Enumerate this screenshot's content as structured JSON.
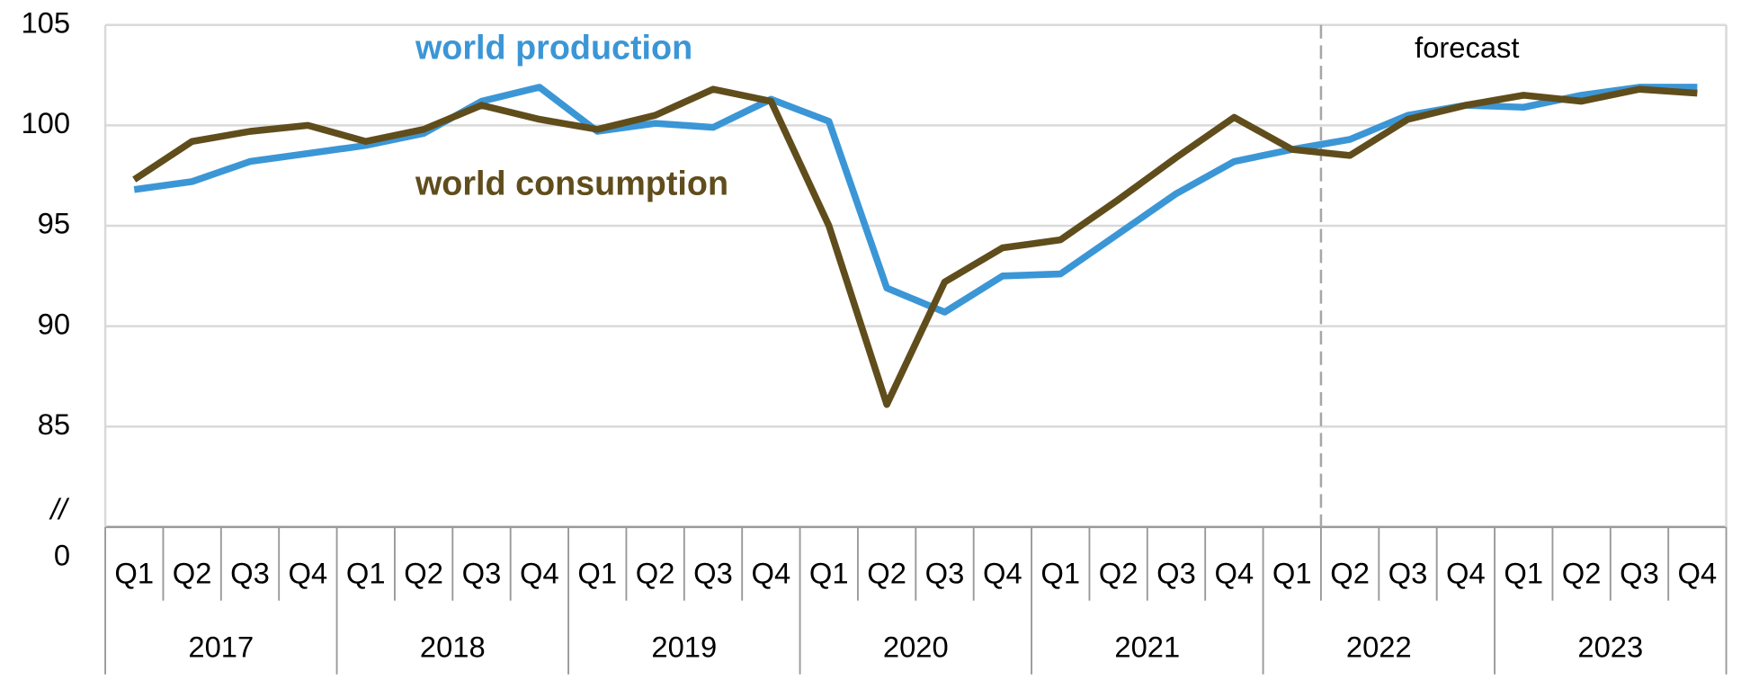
{
  "chart_data": {
    "type": "line",
    "categories": [
      "Q1",
      "Q2",
      "Q3",
      "Q4",
      "Q1",
      "Q2",
      "Q3",
      "Q4",
      "Q1",
      "Q2",
      "Q3",
      "Q4",
      "Q1",
      "Q2",
      "Q3",
      "Q4",
      "Q1",
      "Q2",
      "Q3",
      "Q4",
      "Q1",
      "Q2",
      "Q3",
      "Q4",
      "Q1",
      "Q2",
      "Q3",
      "Q4"
    ],
    "years": [
      "2017",
      "2018",
      "2019",
      "2020",
      "2021",
      "2022",
      "2023"
    ],
    "series": [
      {
        "name": "world production",
        "color": "#3b96d6",
        "values": [
          96.8,
          97.2,
          98.2,
          98.6,
          99.0,
          99.6,
          101.2,
          101.9,
          99.7,
          100.1,
          99.9,
          101.3,
          100.2,
          91.9,
          90.7,
          92.5,
          92.6,
          94.6,
          96.6,
          98.2,
          98.8,
          99.3,
          100.5,
          101.0,
          100.9,
          101.5,
          101.9,
          101.9
        ]
      },
      {
        "name": "world consumption",
        "color": "#604d1c",
        "values": [
          97.3,
          99.2,
          99.7,
          100.0,
          99.2,
          99.8,
          101.0,
          100.3,
          99.8,
          100.5,
          101.8,
          101.2,
          95.0,
          86.1,
          92.2,
          93.9,
          94.3,
          96.3,
          98.4,
          100.4,
          98.8,
          98.5,
          100.3,
          101.0,
          101.5,
          101.2,
          101.8,
          101.6
        ]
      }
    ],
    "ylim": [
      80,
      105
    ],
    "yticks": [
      {
        "value": 80,
        "label": "0"
      },
      85,
      90,
      95,
      100,
      105
    ],
    "axis_break": "//",
    "annotation": "forecast",
    "grid": true
  }
}
